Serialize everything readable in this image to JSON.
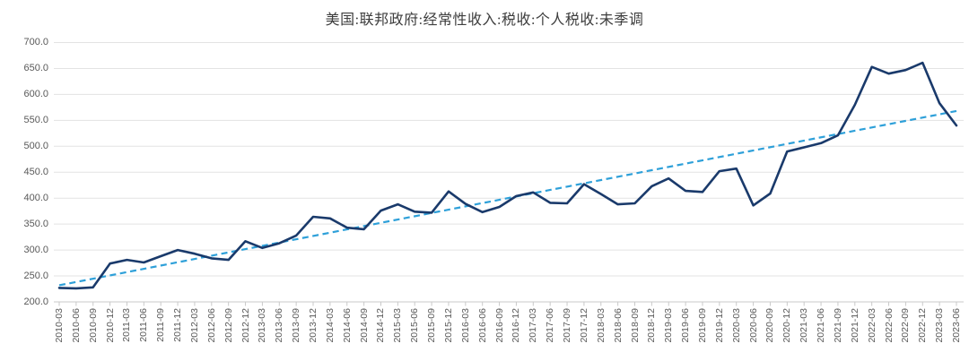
{
  "chart_data": {
    "type": "line",
    "title": "美国:联邦政府:经常性收入:税收:个人税收:未季调",
    "categories": [
      "2010-03",
      "2010-06",
      "2010-09",
      "2010-12",
      "2011-03",
      "2011-06",
      "2011-09",
      "2011-12",
      "2012-03",
      "2012-06",
      "2012-09",
      "2012-12",
      "2013-03",
      "2013-06",
      "2013-09",
      "2013-12",
      "2014-03",
      "2014-06",
      "2014-09",
      "2014-12",
      "2015-03",
      "2015-06",
      "2015-09",
      "2015-12",
      "2016-03",
      "2016-06",
      "2016-09",
      "2016-12",
      "2017-03",
      "2017-06",
      "2017-09",
      "2017-12",
      "2018-03",
      "2018-06",
      "2018-09",
      "2018-12",
      "2019-03",
      "2019-06",
      "2019-09",
      "2019-12",
      "2020-03",
      "2020-06",
      "2020-09",
      "2020-12",
      "2021-03",
      "2021-06",
      "2021-09",
      "2021-12",
      "2022-03",
      "2022-06",
      "2022-09",
      "2022-12",
      "2023-03",
      "2023-06"
    ],
    "series": [
      {
        "values": [
          227,
          226,
          228,
          274,
          281,
          276,
          288,
          300,
          293,
          284,
          281,
          317,
          304,
          313,
          328,
          364,
          361,
          343,
          340,
          376,
          388,
          374,
          372,
          413,
          389,
          373,
          383,
          404,
          411,
          391,
          390,
          427,
          408,
          388,
          390,
          423,
          438,
          414,
          412,
          452,
          457,
          386,
          409,
          490,
          498,
          506,
          521,
          580,
          653,
          640,
          647,
          661,
          583,
          540
        ],
        "color": "#1a3a6b",
        "line_width": 2.6
      }
    ],
    "trendline": {
      "style": "dashed",
      "color": "#2ea0d9",
      "start_value": 232,
      "end_value": 568,
      "line_width": 2.2
    },
    "ylim": [
      200,
      700
    ],
    "ytick_step": 50,
    "ytick_labels": [
      "200.0",
      "250.0",
      "300.0",
      "350.0",
      "400.0",
      "450.0",
      "500.0",
      "550.0",
      "600.0",
      "650.0",
      "700.0"
    ],
    "xlabel": "",
    "ylabel": "",
    "xlabel_rotation": -90,
    "grid": true,
    "legend": "none",
    "colors": {
      "grid": "#e3e3e3",
      "axis": "#c9c9c9",
      "tick_text": "#595959",
      "title_text": "#3d3d3d",
      "background": "#ffffff"
    }
  }
}
